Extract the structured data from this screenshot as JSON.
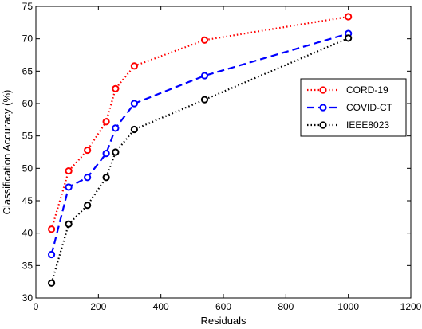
{
  "chart_data": {
    "type": "line",
    "xlabel": "Residuals",
    "ylabel": "Classification Accuracy (%)",
    "xlim": [
      0,
      1200
    ],
    "ylim": [
      30,
      75
    ],
    "xticks": [
      0,
      200,
      400,
      600,
      800,
      1000,
      1200
    ],
    "yticks": [
      30,
      35,
      40,
      45,
      50,
      55,
      60,
      65,
      70,
      75
    ],
    "xtick_labels": [
      "0",
      "200",
      "400",
      "600",
      "800",
      "1000",
      "1200"
    ],
    "ytick_labels": [
      "30",
      "35",
      "40",
      "45",
      "50",
      "55",
      "60",
      "65",
      "70",
      "75"
    ],
    "grid": false,
    "legend_position": "right",
    "x": [
      50,
      105,
      165,
      225,
      255,
      315,
      540,
      1000
    ],
    "series": [
      {
        "name": "CORD-19",
        "color": "#ff0000",
        "line_style": "dotted",
        "marker": "circle",
        "values": [
          40.6,
          49.6,
          52.8,
          57.2,
          62.3,
          65.8,
          69.8,
          73.4
        ]
      },
      {
        "name": "COVID-CT",
        "color": "#0000ff",
        "line_style": "dashed",
        "marker": "circle",
        "values": [
          36.7,
          47.1,
          48.6,
          52.3,
          56.2,
          60.0,
          64.3,
          70.8
        ]
      },
      {
        "name": "IEEE8023",
        "color": "#000000",
        "line_style": "dotted",
        "marker": "circle",
        "values": [
          32.3,
          41.4,
          44.3,
          48.6,
          52.5,
          56.0,
          60.6,
          70.1
        ]
      }
    ]
  }
}
